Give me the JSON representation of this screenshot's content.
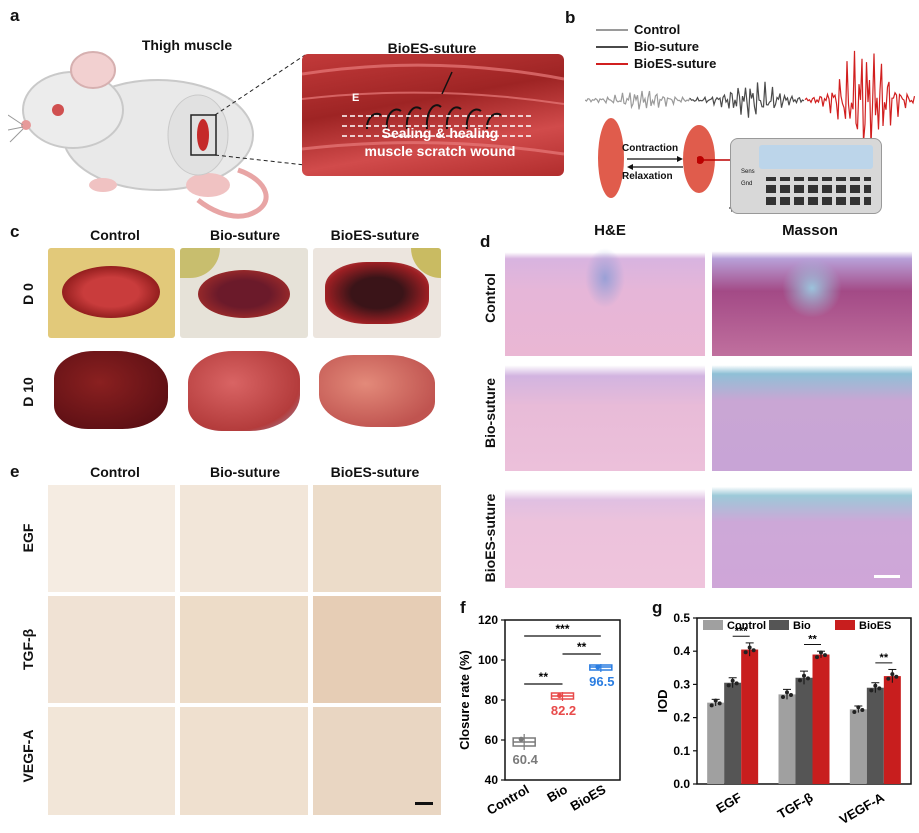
{
  "panels": {
    "a": "a",
    "b": "b",
    "c": "c",
    "d": "d",
    "e": "e",
    "f": "f",
    "g": "g"
  },
  "panel_a": {
    "thigh_label": "Thigh muscle",
    "suture_label": "BioES-suture",
    "e_label": "E",
    "sealing_line1": "Sealing & healing",
    "sealing_line2": "muscle scratch wound"
  },
  "panel_b": {
    "legend": [
      "Control",
      "Bio-suture",
      "BioES-suture"
    ],
    "legend_colors": [
      "#9a9a9a",
      "#4a4a4a",
      "#d11f1f"
    ],
    "contraction": "Contraction",
    "relaxation": "Relaxation",
    "port1": "Sens",
    "port2": "Gnd"
  },
  "panel_c": {
    "cols": [
      "Control",
      "Bio-suture",
      "BioES-suture"
    ],
    "rows": [
      "D 0",
      "D 10"
    ]
  },
  "panel_d": {
    "cols": [
      "H&E",
      "Masson"
    ],
    "rows": [
      "Control",
      "Bio-suture",
      "BioES-suture"
    ]
  },
  "panel_e": {
    "cols": [
      "Control",
      "Bio-suture",
      "BioES-suture"
    ],
    "rows": [
      "EGF",
      "TGF-β",
      "VEGF-A"
    ]
  },
  "chart_data": [
    {
      "type": "box",
      "panel": "f",
      "ylabel": "Closure rate (%)",
      "categories": [
        "Control",
        "Bio",
        "BioES"
      ],
      "means": [
        60.4,
        82.2,
        96.5
      ],
      "mean_labels": [
        "60.4",
        "82.2",
        "96.5"
      ],
      "colors": [
        "#7a7a7a",
        "#e84a4a",
        "#2a7de1"
      ],
      "ylim": [
        40,
        120
      ],
      "yticks": [
        40,
        60,
        80,
        100,
        120
      ],
      "boxes": [
        {
          "q1": 57,
          "median": 59,
          "q3": 61,
          "min": 55,
          "max": 63
        },
        {
          "q1": 80.5,
          "median": 82,
          "q3": 83.5,
          "min": 79.5,
          "max": 84
        },
        {
          "q1": 95,
          "median": 96.5,
          "q3": 97.5,
          "min": 94,
          "max": 98
        }
      ],
      "significance": [
        {
          "from": 0,
          "to": 2,
          "label": "***"
        },
        {
          "from": 0,
          "to": 1,
          "label": "**"
        },
        {
          "from": 1,
          "to": 2,
          "label": "**"
        }
      ]
    },
    {
      "type": "bar",
      "panel": "g",
      "ylabel": "IOD",
      "categories": [
        "EGF",
        "TGF-β",
        "VEGF-A"
      ],
      "series": [
        {
          "name": "Control",
          "color": "#a0a0a0",
          "values": [
            0.245,
            0.27,
            0.225
          ],
          "errors": [
            0.01,
            0.015,
            0.01
          ]
        },
        {
          "name": "Bio",
          "color": "#555555",
          "values": [
            0.305,
            0.32,
            0.29
          ],
          "errors": [
            0.015,
            0.02,
            0.015
          ]
        },
        {
          "name": "BioES",
          "color": "#c81e1e",
          "values": [
            0.405,
            0.39,
            0.325
          ],
          "errors": [
            0.02,
            0.01,
            0.02
          ]
        }
      ],
      "ylim": [
        0,
        0.5
      ],
      "yticks": [
        "0.0",
        "0.1",
        "0.2",
        "0.3",
        "0.4",
        "0.5"
      ],
      "significance": [
        {
          "category": 0,
          "label": "***"
        },
        {
          "category": 1,
          "label": "**"
        },
        {
          "category": 2,
          "label": "**"
        }
      ]
    }
  ]
}
